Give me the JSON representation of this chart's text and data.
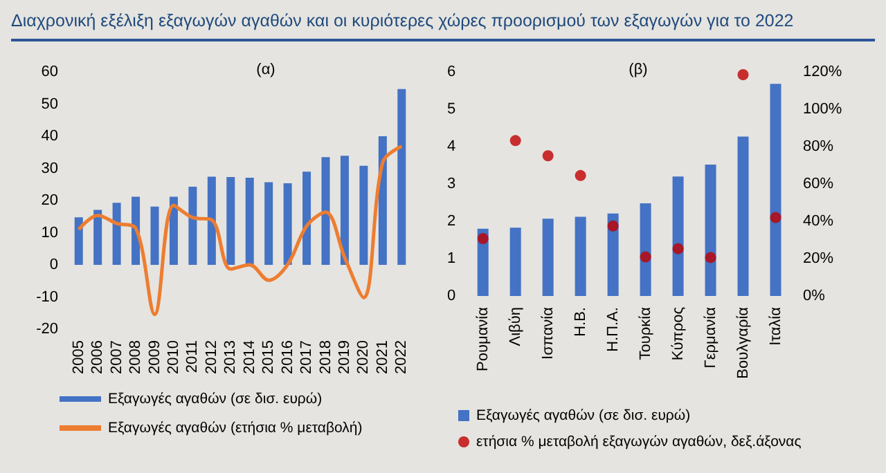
{
  "chart_data": [
    {
      "type": "bar",
      "title": "Διαχρονική εξέλιξη εξαγωγών αγαθών και οι κυριότερες χώρες προορισμού των εξαγωγών για το 2022",
      "subtitle": "(α)",
      "categories": [
        "2005",
        "2006",
        "2007",
        "2008",
        "2009",
        "2010",
        "2011",
        "2012",
        "2013",
        "2014",
        "2015",
        "2016",
        "2017",
        "2018",
        "2019",
        "2020",
        "2021",
        "2022"
      ],
      "series": [
        {
          "name": "Εξαγωγές αγαθών (σε δισ. ευρώ)",
          "color": "#4472c4",
          "values": [
            14.8,
            17.1,
            19.3,
            21.2,
            18.1,
            21.2,
            24.3,
            27.4,
            27.3,
            27.1,
            25.7,
            25.4,
            29.0,
            33.5,
            33.9,
            30.8,
            40.0,
            54.7
          ]
        },
        {
          "name": "Εξαγωγές αγαθών (ετήσια % μεταβολή)",
          "type": "line",
          "color": "#ed7d31",
          "values": [
            11.0,
            15.4,
            12.9,
            11.4,
            -15.4,
            18.5,
            14.7,
            14.0,
            -1.3,
            0,
            -4.8,
            0.1,
            12.1,
            16.4,
            2.3,
            -10.2,
            31.9,
            36.9
          ]
        }
      ],
      "ylim": [
        -20,
        60
      ],
      "yticks": [
        -20,
        -10,
        0,
        10,
        20,
        30,
        40,
        50,
        60
      ],
      "grid": false,
      "legend": "bottom",
      "marker": "none"
    },
    {
      "type": "bar",
      "title": "(β)",
      "categories": [
        "Ρουμανία",
        "Λιβύη",
        "Ισπανία",
        "Η.Β.",
        "Η.Π.Α.",
        "Τουρκία",
        "Κύπρος",
        "Γερμανία",
        "Βουλγαρία",
        "Ιταλία"
      ],
      "series": [
        {
          "name": "Εξαγωγές αγαθών (σε δισ. ευρώ)",
          "color": "#4472c4",
          "values": [
            1.8,
            1.83,
            2.07,
            2.12,
            2.21,
            2.48,
            3.2,
            3.52,
            4.27,
            5.68
          ]
        },
        {
          "name": "ετήσια % μεταβολή εξαγωγών αγαθών, δεξ.άξονας",
          "type": "scatter",
          "axis": "y2",
          "color": "#c00000",
          "values": [
            30.7,
            83.2,
            75.1,
            64.5,
            37.5,
            20.9,
            25.3,
            20.6,
            118.5,
            42.0
          ]
        }
      ],
      "ylim": [
        0,
        6
      ],
      "yticks": [
        0,
        1,
        2,
        3,
        4,
        5,
        6
      ],
      "y2lim": [
        0,
        120
      ],
      "y2ticks": [
        {
          "value": 0,
          "label": "0%"
        },
        {
          "value": 20,
          "label": "20%"
        },
        {
          "value": 40,
          "label": "40%"
        },
        {
          "value": 60,
          "label": "60%"
        },
        {
          "value": 80,
          "label": "80%"
        },
        {
          "value": 100,
          "label": "100%"
        },
        {
          "value": 120,
          "label": "120%"
        }
      ],
      "grid": false,
      "legend": "bottom",
      "marker": "circle"
    }
  ]
}
